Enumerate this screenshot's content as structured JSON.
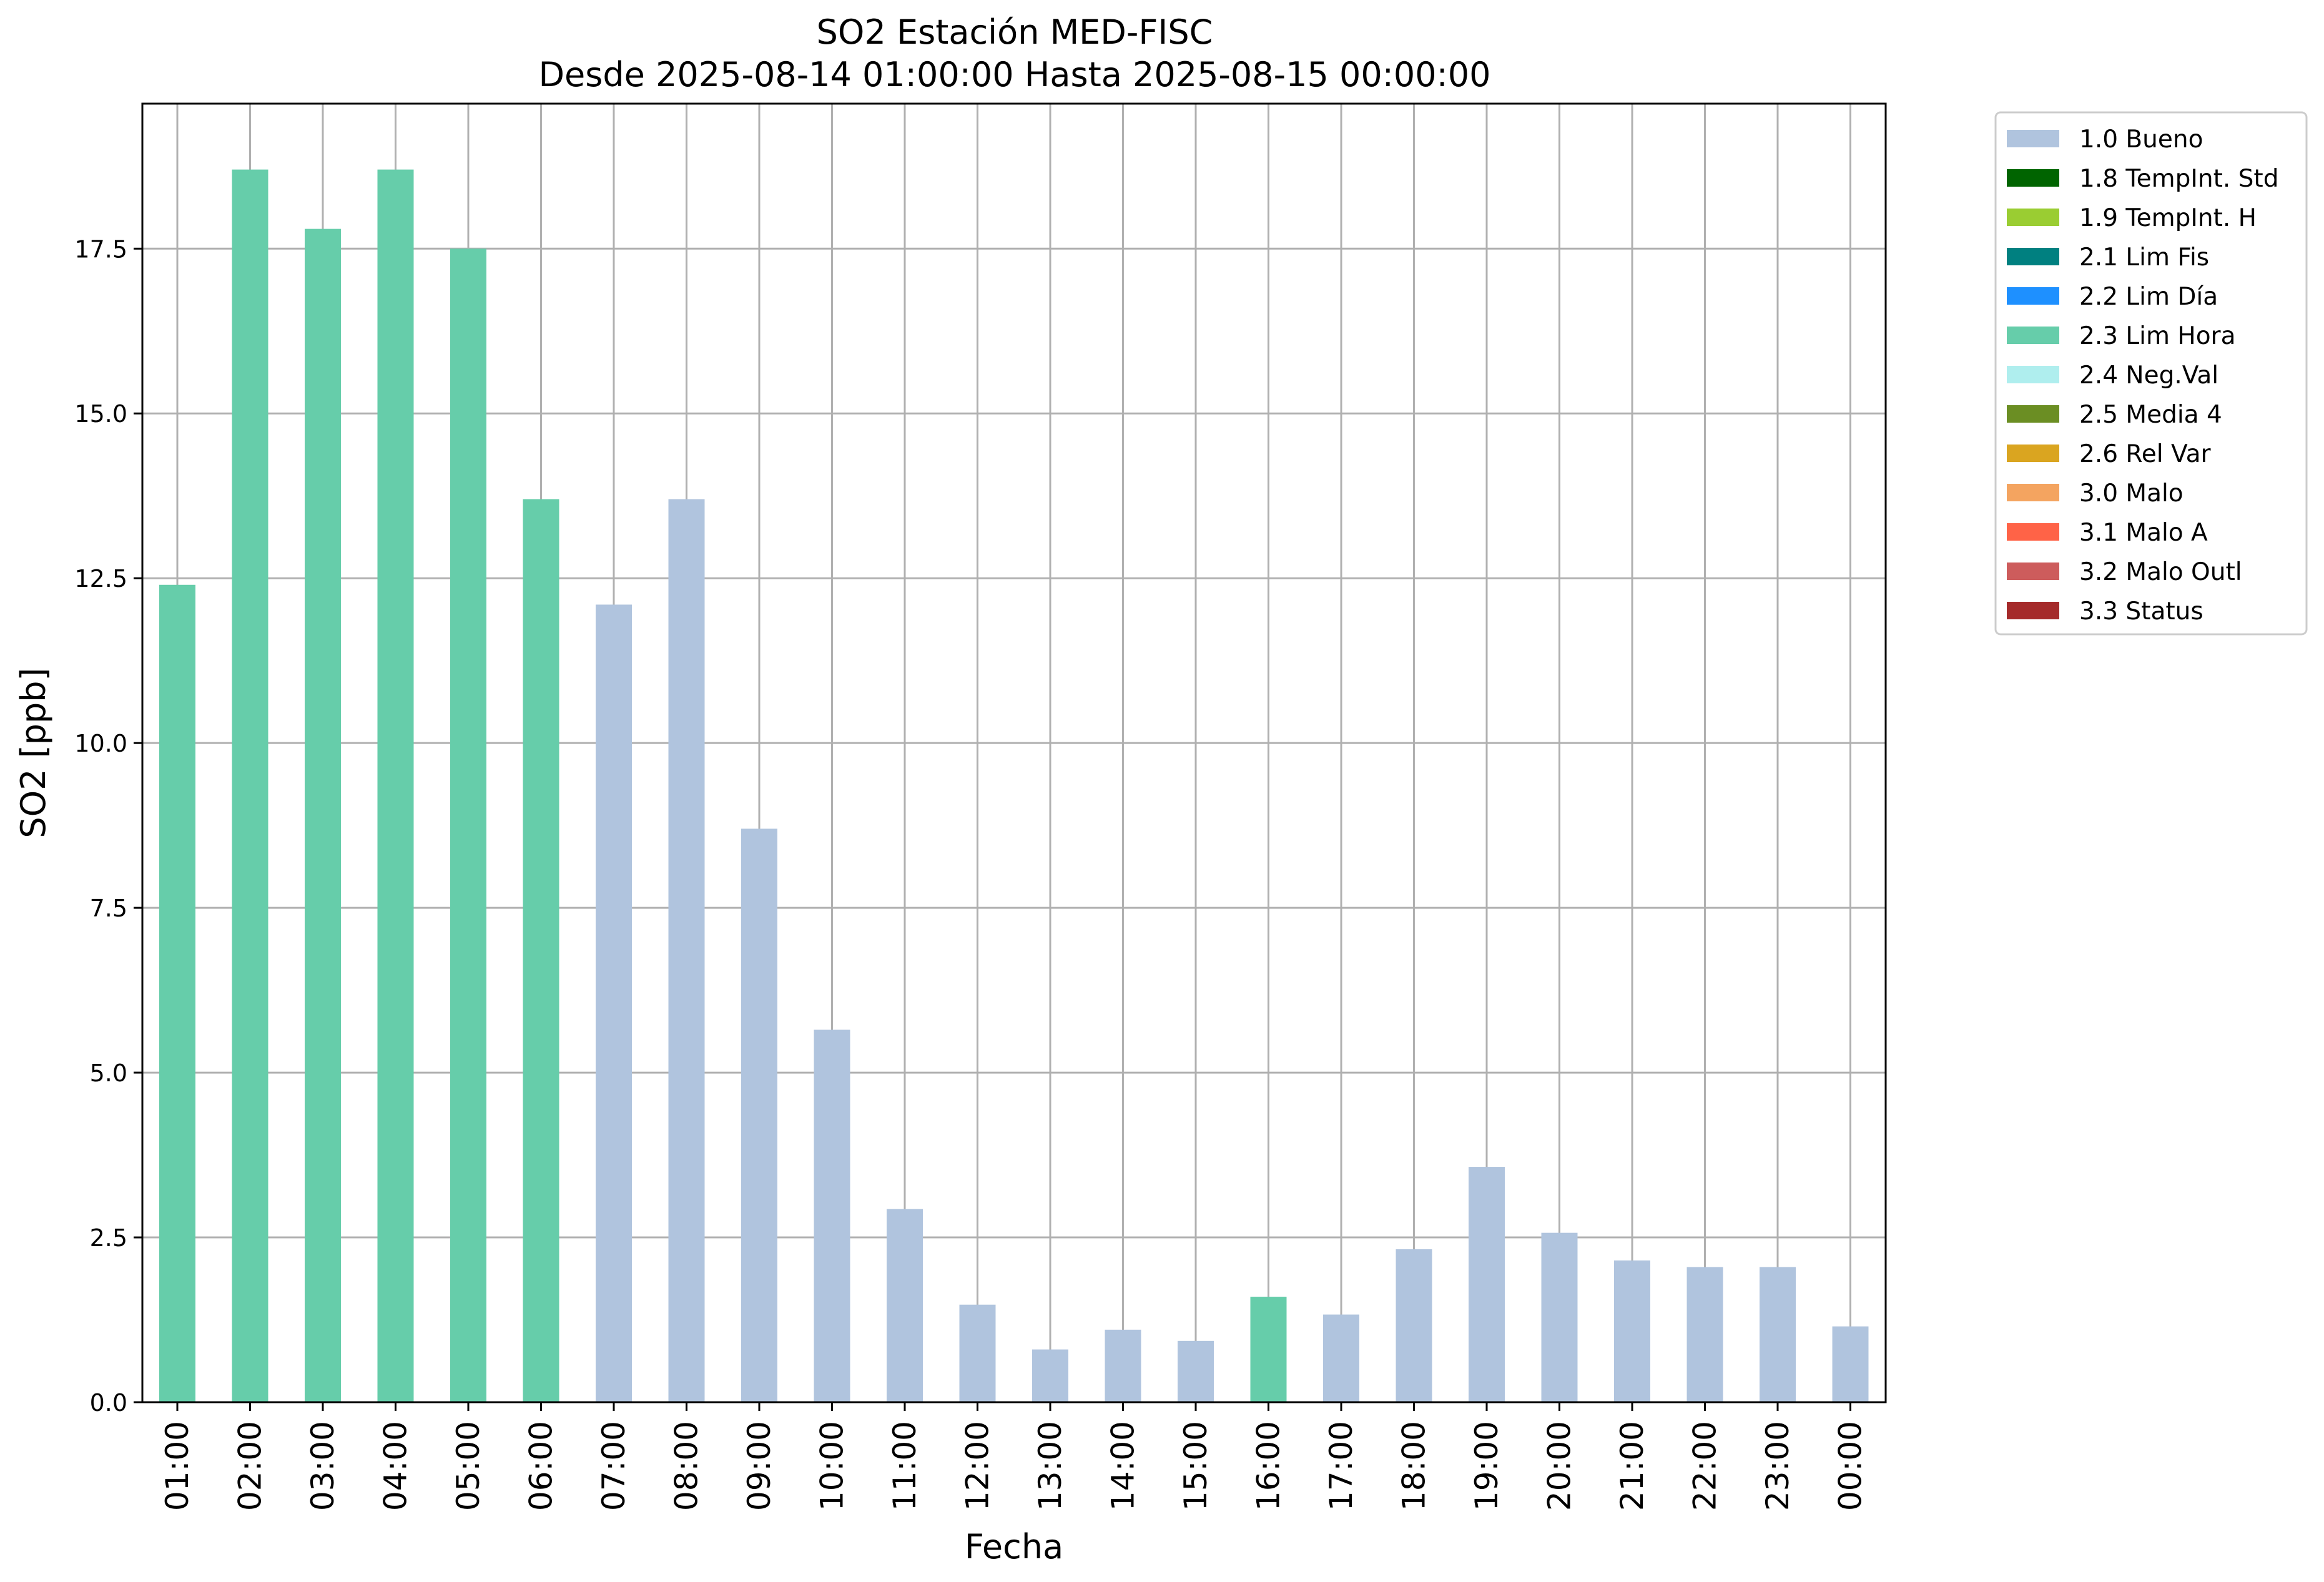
{
  "chart_data": {
    "type": "bar",
    "title": "SO2 Estación MED-FISC",
    "subtitle": "Desde 2025-08-14 01:00:00 Hasta 2025-08-15 00:00:00",
    "xlabel": "Fecha",
    "ylabel": "SO2 [ppb]",
    "ylim": [
      0,
      19.7
    ],
    "yticks": [
      "0.0",
      "2.5",
      "5.0",
      "7.5",
      "10.0",
      "12.5",
      "15.0",
      "17.5"
    ],
    "grid": true,
    "legend_position": "outside-top-right",
    "categories": [
      "01:00",
      "02:00",
      "03:00",
      "04:00",
      "05:00",
      "06:00",
      "07:00",
      "08:00",
      "09:00",
      "10:00",
      "11:00",
      "12:00",
      "13:00",
      "14:00",
      "15:00",
      "16:00",
      "17:00",
      "18:00",
      "19:00",
      "20:00",
      "21:00",
      "22:00",
      "23:00",
      "00:00"
    ],
    "values": [
      12.4,
      18.7,
      17.8,
      18.7,
      17.5,
      13.7,
      12.1,
      13.7,
      8.7,
      5.65,
      2.93,
      1.48,
      0.8,
      1.1,
      0.93,
      1.6,
      1.33,
      2.32,
      3.57,
      2.57,
      2.15,
      2.05,
      2.05,
      1.15
    ],
    "flags": [
      "2.3 Lim Hora",
      "2.3 Lim Hora",
      "2.3 Lim Hora",
      "2.3 Lim Hora",
      "2.3 Lim Hora",
      "2.3 Lim Hora",
      "1.0 Bueno",
      "1.0 Bueno",
      "1.0 Bueno",
      "1.0 Bueno",
      "1.0 Bueno",
      "1.0 Bueno",
      "1.0 Bueno",
      "1.0 Bueno",
      "1.0 Bueno",
      "2.3 Lim Hora",
      "1.0 Bueno",
      "1.0 Bueno",
      "1.0 Bueno",
      "1.0 Bueno",
      "1.0 Bueno",
      "1.0 Bueno",
      "1.0 Bueno",
      "1.0 Bueno"
    ],
    "legend": [
      {
        "label": "1.0 Bueno",
        "color": "#b0c4de"
      },
      {
        "label": "1.8 TempInt. Std",
        "color": "#006400"
      },
      {
        "label": "1.9 TempInt. H",
        "color": "#9acd32"
      },
      {
        "label": "2.1 Lim Fis",
        "color": "#008080"
      },
      {
        "label": "2.2 Lim Día",
        "color": "#1e90ff"
      },
      {
        "label": "2.3 Lim Hora",
        "color": "#66cdaa"
      },
      {
        "label": "2.4 Neg.Val",
        "color": "#afeeee"
      },
      {
        "label": "2.5 Media 4",
        "color": "#6b8e23"
      },
      {
        "label": "2.6 Rel Var",
        "color": "#daa520"
      },
      {
        "label": "3.0 Malo",
        "color": "#f4a460"
      },
      {
        "label": "3.1 Malo A",
        "color": "#ff6347"
      },
      {
        "label": "3.2 Malo Outl",
        "color": "#cd5c5c"
      },
      {
        "label": "3.3 Status",
        "color": "#a52a2a"
      }
    ]
  }
}
